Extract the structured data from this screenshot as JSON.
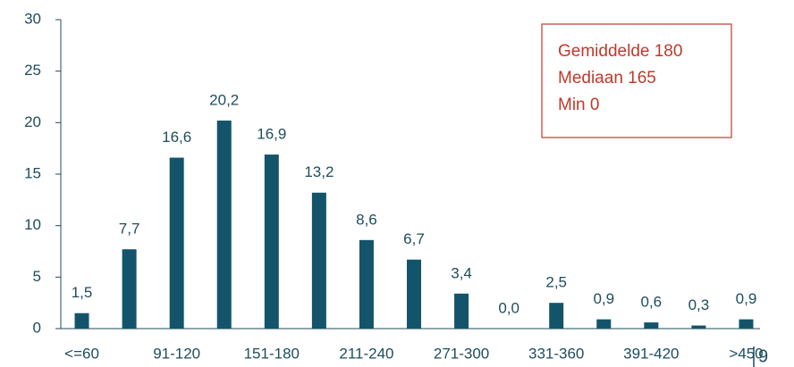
{
  "chart_data": {
    "type": "bar",
    "categories": [
      "<=60",
      null,
      "91-120",
      null,
      "151-180",
      null,
      "211-240",
      null,
      "271-300",
      null,
      "331-360",
      null,
      "391-420",
      null,
      ">450"
    ],
    "values": [
      1.5,
      7.7,
      16.6,
      20.2,
      16.9,
      13.2,
      8.6,
      6.7,
      3.4,
      0.0,
      2.5,
      0.9,
      0.6,
      0.3,
      0.9
    ],
    "value_labels": [
      "1,5",
      "7,7",
      "16,6",
      "20,2",
      "16,9",
      "13,2",
      "8,6",
      "6,7",
      "3,4",
      "0,0",
      "2,5",
      "0,9",
      "0,6",
      "0,3",
      "0,9"
    ],
    "color": "#14546b",
    "ylim": [
      0,
      30
    ],
    "yticks": [
      0,
      5,
      10,
      15,
      20,
      25,
      30
    ],
    "annotations": [
      "Gemiddelde 180",
      "Mediaan 165",
      "Min 0"
    ],
    "page_number": "9"
  }
}
